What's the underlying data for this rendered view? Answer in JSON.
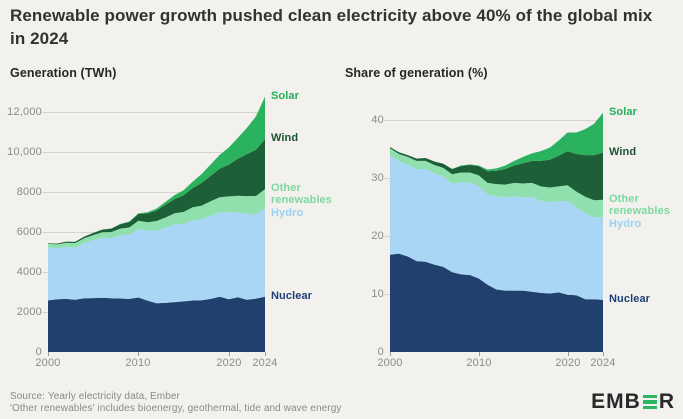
{
  "title": "Renewable power growth pushed clean electricity above 40% of the global mix in 2024",
  "footer": {
    "source_line1": "Source: Yearly electricity data, Ember",
    "source_line2": "'Other renewables' includes bioenergy, geothermal, tide and wave energy"
  },
  "logo": {
    "prefix": "EMB",
    "suffix": "R",
    "accent_color": "#2eb563",
    "text_color": "#282828"
  },
  "colors": {
    "background": "#f2f1ee",
    "grid": "#d4d3d0",
    "axis_text": "#8c8b89"
  },
  "chart_data": [
    {
      "type": "area",
      "stacked": true,
      "title": "Generation (TWh)",
      "x": [
        2000,
        2001,
        2002,
        2003,
        2004,
        2005,
        2006,
        2007,
        2008,
        2009,
        2010,
        2011,
        2012,
        2013,
        2014,
        2015,
        2016,
        2017,
        2018,
        2019,
        2020,
        2021,
        2022,
        2023,
        2024
      ],
      "x_ticks": [
        {
          "v": 2000,
          "label": "2000"
        },
        {
          "v": 2010,
          "label": "2010"
        },
        {
          "v": 2020,
          "label": "2020"
        },
        {
          "v": 2024,
          "label": "2024"
        }
      ],
      "y_ticks": [
        {
          "v": 0,
          "label": "0"
        },
        {
          "v": 2000,
          "label": "2000"
        },
        {
          "v": 4000,
          "label": "4000"
        },
        {
          "v": 6000,
          "label": "6000"
        },
        {
          "v": 8000,
          "label": "8000"
        },
        {
          "v": 10000,
          "label": "10,000"
        },
        {
          "v": 12000,
          "label": "12,000"
        }
      ],
      "ylim": [
        0,
        13000
      ],
      "grid": true,
      "legend_position": "right",
      "series": [
        {
          "name": "Nuclear",
          "color": "#21406e",
          "label_color": "#1e3f75",
          "values": [
            2581,
            2637,
            2654,
            2615,
            2684,
            2696,
            2715,
            2689,
            2673,
            2654,
            2725,
            2571,
            2436,
            2454,
            2497,
            2528,
            2573,
            2592,
            2657,
            2760,
            2642,
            2736,
            2611,
            2669,
            2767
          ]
        },
        {
          "name": "Hydro",
          "color": "#a8d6f4",
          "label_color": "#9bd1f3",
          "values": [
            2644,
            2554,
            2606,
            2607,
            2759,
            2894,
            2994,
            3004,
            3173,
            3223,
            3437,
            3490,
            3646,
            3756,
            3885,
            3877,
            4027,
            4047,
            4169,
            4222,
            4345,
            4241,
            4311,
            4210,
            4418
          ]
        },
        {
          "name": "Other renewables",
          "color": "#8fe0ad",
          "label_color": "#7dd9a1",
          "values": [
            185,
            190,
            207,
            222,
            240,
            257,
            279,
            304,
            325,
            352,
            397,
            430,
            470,
            516,
            556,
            600,
            636,
            680,
            717,
            757,
            795,
            834,
            874,
            920,
            960
          ]
        },
        {
          "name": "Wind",
          "color": "#1d5f37",
          "label_color": "#1b5331",
          "values": [
            31,
            38,
            52,
            63,
            85,
            104,
            133,
            171,
            221,
            276,
            342,
            437,
            523,
            646,
            712,
            831,
            957,
            1136,
            1269,
            1420,
            1590,
            1848,
            2098,
            2310,
            2494
          ]
        },
        {
          "name": "Solar",
          "color": "#2bb25f",
          "label_color": "#25ae59",
          "values": [
            1,
            1,
            2,
            2,
            3,
            4,
            5,
            7,
            12,
            20,
            32,
            63,
            97,
            132,
            197,
            256,
            328,
            444,
            574,
            705,
            853,
            1049,
            1310,
            1674,
            2131
          ]
        }
      ]
    },
    {
      "type": "area",
      "stacked": true,
      "title": "Share of generation (%)",
      "x": [
        2000,
        2001,
        2002,
        2003,
        2004,
        2005,
        2006,
        2007,
        2008,
        2009,
        2010,
        2011,
        2012,
        2013,
        2014,
        2015,
        2016,
        2017,
        2018,
        2019,
        2020,
        2021,
        2022,
        2023,
        2024
      ],
      "x_ticks": [
        {
          "v": 2000,
          "label": "2000"
        },
        {
          "v": 2010,
          "label": "2010"
        },
        {
          "v": 2020,
          "label": "2020"
        },
        {
          "v": 2024,
          "label": "2024"
        }
      ],
      "y_ticks": [
        {
          "v": 0,
          "label": "0"
        },
        {
          "v": 10,
          "label": "10"
        },
        {
          "v": 20,
          "label": "20"
        },
        {
          "v": 30,
          "label": "30"
        },
        {
          "v": 40,
          "label": "40"
        }
      ],
      "ylim": [
        0,
        43
      ],
      "grid": true,
      "legend_position": "right",
      "series": [
        {
          "name": "Nuclear",
          "color": "#21406e",
          "label_color": "#1e3f75",
          "values": [
            16.8,
            17.0,
            16.5,
            15.7,
            15.6,
            15.1,
            14.7,
            13.8,
            13.4,
            13.3,
            12.7,
            11.6,
            10.8,
            10.6,
            10.6,
            10.6,
            10.4,
            10.2,
            10.1,
            10.3,
            9.9,
            9.8,
            9.1,
            9.1,
            9.0
          ]
        },
        {
          "name": "Hydro",
          "color": "#a8d6f4",
          "label_color": "#9bd1f3",
          "values": [
            17.2,
            16.0,
            15.8,
            15.9,
            16.0,
            15.8,
            15.6,
            15.3,
            15.9,
            15.9,
            15.9,
            15.6,
            16.1,
            16.1,
            16.3,
            16.1,
            16.4,
            15.9,
            15.8,
            15.7,
            16.2,
            15.2,
            14.9,
            14.2,
            14.3
          ]
        },
        {
          "name": "Other renewables",
          "color": "#8fe0ad",
          "label_color": "#7dd9a1",
          "values": [
            1.2,
            1.2,
            1.4,
            1.4,
            1.4,
            1.4,
            1.5,
            1.6,
            1.7,
            1.8,
            1.9,
            2.0,
            2.1,
            2.2,
            2.3,
            2.4,
            2.4,
            2.5,
            2.5,
            2.6,
            2.7,
            2.7,
            2.8,
            2.9,
            3.0
          ]
        },
        {
          "name": "Wind",
          "color": "#1d5f37",
          "label_color": "#1b5331",
          "values": [
            0.2,
            0.3,
            0.3,
            0.4,
            0.5,
            0.6,
            0.7,
            0.9,
            1.1,
            1.3,
            1.6,
            2.0,
            2.3,
            2.7,
            3.0,
            3.5,
            3.8,
            4.4,
            4.8,
            5.3,
            5.9,
            6.5,
            7.2,
            7.8,
            8.1
          ]
        },
        {
          "name": "Solar",
          "color": "#2bb25f",
          "label_color": "#25ae59",
          "values": [
            0.0,
            0.0,
            0.0,
            0.0,
            0.0,
            0.0,
            0.0,
            0.0,
            0.1,
            0.1,
            0.1,
            0.3,
            0.4,
            0.6,
            0.8,
            1.1,
            1.3,
            1.7,
            2.1,
            2.6,
            3.2,
            3.7,
            4.5,
            5.4,
            6.9
          ]
        }
      ]
    }
  ]
}
